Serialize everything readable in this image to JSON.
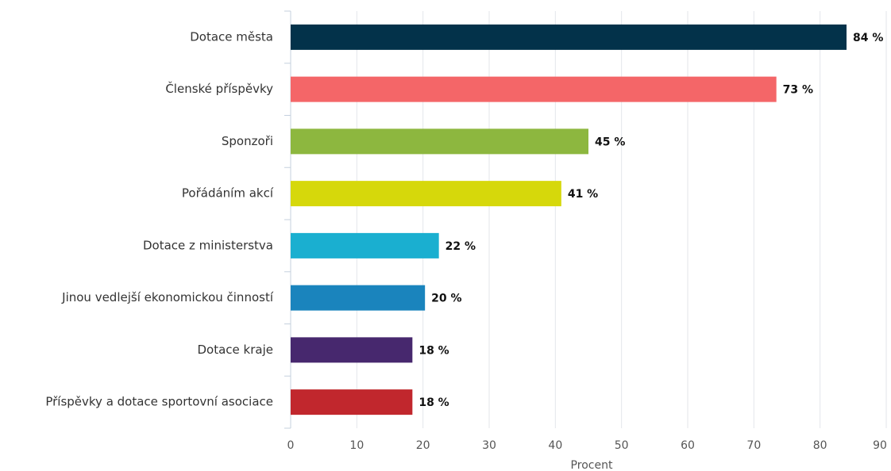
{
  "chart_data": {
    "type": "bar",
    "orientation": "horizontal",
    "categories": [
      "Dotace města",
      "Členské příspěvky",
      "Sponzoři",
      "Pořádáním akcí",
      "Dotace z ministerstva",
      "Jinou vedlejší ekonomickou činností",
      "Dotace kraje",
      "Příspěvky a dotace sportovní asociace"
    ],
    "values": [
      84,
      73.4,
      45,
      40.9,
      22.4,
      20.3,
      18.4,
      18.4
    ],
    "value_labels": [
      "84 %",
      "73 %",
      "45 %",
      "41 %",
      "22 %",
      "20 %",
      "18 %",
      "18 %"
    ],
    "colors": [
      "#03324a",
      "#f46668",
      "#8db73f",
      "#d6d80b",
      "#1aafd0",
      "#1a84bd",
      "#47286e",
      "#c1272d"
    ],
    "xlabel": "Procent",
    "xlim": [
      0,
      90
    ],
    "xticks": [
      0,
      10,
      20,
      30,
      40,
      50,
      60,
      70,
      80,
      90
    ],
    "grid": true
  }
}
